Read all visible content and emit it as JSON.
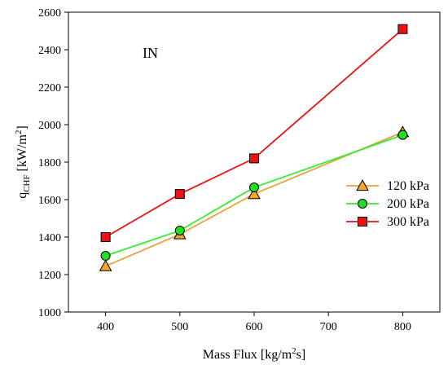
{
  "chart_data": {
    "type": "line",
    "annotation": "IN",
    "xlabel": {
      "main": "Mass Flux [kg/m",
      "sup": "2",
      "tail": "s]"
    },
    "ylabel": {
      "main": "q",
      "sub": "CHF",
      "unit": " [kW/m",
      "sup": "2",
      "tail": "]"
    },
    "xlim": [
      350,
      850
    ],
    "ylim": [
      1000,
      2600
    ],
    "xticks": [
      400,
      500,
      600,
      700,
      800
    ],
    "yticks": [
      1000,
      1200,
      1400,
      1600,
      1800,
      2000,
      2200,
      2400,
      2600
    ],
    "grid": false,
    "legend_position": "right",
    "series": [
      {
        "name": "120 kPa",
        "marker": "triangle",
        "color": "#f5a623",
        "line_color": "#e8a33a",
        "x": [
          400,
          500,
          600,
          800
        ],
        "y": [
          1245,
          1415,
          1630,
          1960
        ]
      },
      {
        "name": "200 kPa",
        "marker": "circle",
        "color": "#22dd22",
        "line_color": "#33ee33",
        "x": [
          400,
          500,
          600,
          800
        ],
        "y": [
          1300,
          1435,
          1665,
          1945
        ]
      },
      {
        "name": "300 kPa",
        "marker": "square",
        "color": "#ee1111",
        "line_color": "#ee1111",
        "x": [
          400,
          500,
          600,
          800
        ],
        "y": [
          1400,
          1630,
          1820,
          2510
        ]
      }
    ]
  }
}
